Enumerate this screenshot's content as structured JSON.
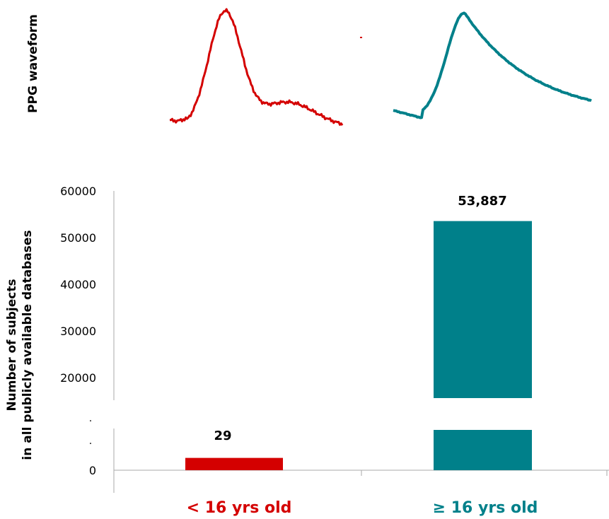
{
  "waveform_label": "PPG waveform",
  "colors": {
    "young": "#d40000",
    "adult": "#00808a"
  },
  "axis_break_marks": [
    ".",
    "."
  ],
  "chart_data": {
    "type": "bar",
    "categories": [
      "< 16 yrs old",
      "≥ 16 yrs old"
    ],
    "values": [
      29,
      53887
    ],
    "data_labels": [
      "29",
      "53,887"
    ],
    "ylabel": [
      "Number of subjects",
      "in all publicly available databases"
    ],
    "yticks_upper": [
      "20000",
      "30000",
      "40000",
      "50000",
      "60000"
    ],
    "ytick_lower": "0",
    "broken_axis": true,
    "ylim_upper": [
      15000,
      60000
    ],
    "grid": false,
    "legend": "none"
  }
}
